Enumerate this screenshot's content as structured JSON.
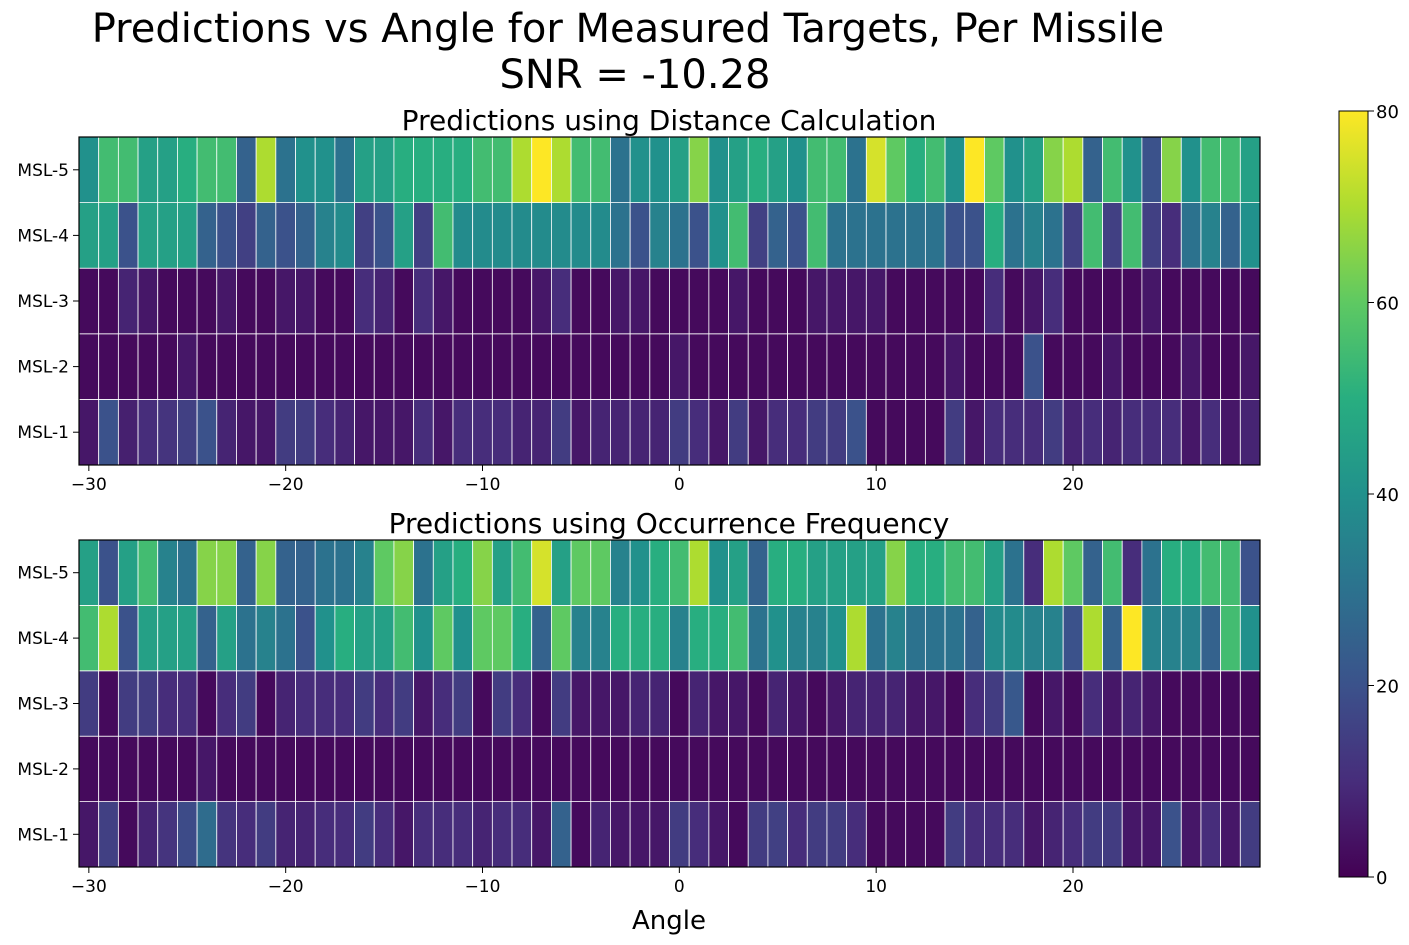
{
  "figure": {
    "title_line1": "Predictions vs Angle for Measured Targets, Per Missile",
    "title_line2": "SNR = -10.28",
    "xlabel": "Angle"
  },
  "colorbar": {
    "colormap": "viridis",
    "vmin": 0,
    "vmax": 80,
    "ticks": [
      0,
      20,
      40,
      60,
      80
    ]
  },
  "chart_data": [
    {
      "type": "heatmap",
      "title": "Predictions using Distance Calculation",
      "x": [
        -30,
        -29,
        -28,
        -27,
        -26,
        -25,
        -24,
        -23,
        -22,
        -21,
        -20,
        -19,
        -18,
        -17,
        -16,
        -15,
        -14,
        -13,
        -12,
        -11,
        -10,
        -9,
        -8,
        -7,
        -6,
        -5,
        -4,
        -3,
        -2,
        -1,
        0,
        1,
        2,
        3,
        4,
        5,
        6,
        7,
        8,
        9,
        10,
        11,
        12,
        13,
        14,
        15,
        16,
        17,
        18,
        19,
        20,
        21,
        22,
        23,
        24,
        25,
        26,
        27,
        28,
        29
      ],
      "x_ticks": [
        -30,
        -20,
        -10,
        0,
        10,
        20
      ],
      "y_categories": [
        "MSL-1",
        "MSL-2",
        "MSL-3",
        "MSL-4",
        "MSL-5"
      ],
      "values": [
        [
          5,
          20,
          7,
          10,
          12,
          15,
          20,
          8,
          5,
          5,
          14,
          14,
          10,
          8,
          5,
          5,
          5,
          10,
          5,
          10,
          10,
          10,
          8,
          8,
          14,
          5,
          8,
          8,
          8,
          8,
          14,
          10,
          5,
          14,
          5,
          10,
          10,
          14,
          14,
          20,
          2,
          2,
          2,
          2,
          14,
          5,
          10,
          10,
          10,
          14,
          8,
          10,
          8,
          10,
          10,
          10,
          5,
          10,
          5,
          8
        ],
        [
          2,
          2,
          2,
          2,
          2,
          5,
          2,
          2,
          2,
          2,
          2,
          2,
          2,
          2,
          2,
          2,
          2,
          2,
          2,
          2,
          2,
          2,
          2,
          2,
          2,
          2,
          2,
          2,
          2,
          2,
          5,
          2,
          2,
          2,
          2,
          2,
          2,
          2,
          2,
          2,
          2,
          2,
          2,
          2,
          5,
          2,
          2,
          2,
          20,
          2,
          2,
          2,
          5,
          2,
          2,
          2,
          5,
          2,
          2,
          5
        ],
        [
          2,
          2,
          8,
          5,
          2,
          2,
          2,
          5,
          2,
          2,
          5,
          5,
          2,
          2,
          10,
          8,
          2,
          10,
          5,
          2,
          2,
          2,
          2,
          5,
          10,
          2,
          2,
          5,
          5,
          2,
          2,
          2,
          2,
          5,
          2,
          2,
          2,
          5,
          5,
          5,
          5,
          2,
          2,
          2,
          2,
          2,
          10,
          2,
          5,
          10,
          2,
          2,
          2,
          2,
          5,
          2,
          2,
          2,
          2,
          2
        ],
        [
          45,
          45,
          20,
          45,
          45,
          45,
          25,
          20,
          15,
          25,
          20,
          25,
          35,
          38,
          15,
          20,
          45,
          15,
          55,
          38,
          38,
          38,
          38,
          38,
          38,
          38,
          38,
          30,
          20,
          35,
          30,
          20,
          40,
          55,
          15,
          25,
          20,
          55,
          30,
          30,
          30,
          30,
          30,
          30,
          20,
          20,
          50,
          30,
          35,
          30,
          15,
          55,
          15,
          55,
          15,
          10,
          30,
          35,
          25,
          40
        ],
        [
          40,
          55,
          55,
          45,
          45,
          50,
          55,
          55,
          25,
          70,
          30,
          40,
          40,
          30,
          45,
          45,
          50,
          50,
          50,
          50,
          55,
          55,
          70,
          80,
          70,
          55,
          55,
          30,
          40,
          40,
          45,
          65,
          40,
          45,
          50,
          45,
          40,
          55,
          55,
          30,
          75,
          60,
          50,
          55,
          40,
          80,
          60,
          40,
          45,
          65,
          70,
          25,
          55,
          40,
          20,
          65,
          40,
          55,
          55,
          45
        ]
      ]
    },
    {
      "type": "heatmap",
      "title": "Predictions using Occurrence Frequency",
      "x": [
        -30,
        -29,
        -28,
        -27,
        -26,
        -25,
        -24,
        -23,
        -22,
        -21,
        -20,
        -19,
        -18,
        -17,
        -16,
        -15,
        -14,
        -13,
        -12,
        -11,
        -10,
        -9,
        -8,
        -7,
        -6,
        -5,
        -4,
        -3,
        -2,
        -1,
        0,
        1,
        2,
        3,
        4,
        5,
        6,
        7,
        8,
        9,
        10,
        11,
        12,
        13,
        14,
        15,
        16,
        17,
        18,
        19,
        20,
        21,
        22,
        23,
        24,
        25,
        26,
        27,
        28,
        29
      ],
      "x_ticks": [
        -30,
        -20,
        -10,
        0,
        10,
        20
      ],
      "y_categories": [
        "MSL-1",
        "MSL-2",
        "MSL-3",
        "MSL-4",
        "MSL-5"
      ],
      "values": [
        [
          5,
          15,
          2,
          8,
          12,
          18,
          28,
          12,
          10,
          14,
          8,
          8,
          10,
          10,
          14,
          10,
          5,
          10,
          10,
          10,
          8,
          10,
          10,
          5,
          25,
          2,
          8,
          5,
          5,
          5,
          14,
          10,
          5,
          2,
          14,
          15,
          10,
          14,
          14,
          10,
          2,
          2,
          2,
          2,
          14,
          10,
          10,
          10,
          5,
          8,
          10,
          14,
          14,
          5,
          5,
          20,
          5,
          10,
          5,
          14
        ],
        [
          2,
          2,
          2,
          2,
          2,
          2,
          5,
          2,
          2,
          2,
          2,
          2,
          2,
          2,
          2,
          2,
          2,
          2,
          2,
          2,
          2,
          2,
          2,
          2,
          2,
          2,
          2,
          2,
          2,
          2,
          2,
          2,
          2,
          2,
          2,
          2,
          2,
          2,
          2,
          2,
          2,
          2,
          2,
          2,
          2,
          2,
          2,
          2,
          2,
          2,
          2,
          2,
          2,
          2,
          2,
          2,
          2,
          2,
          2,
          2
        ],
        [
          14,
          2,
          14,
          14,
          10,
          10,
          2,
          10,
          14,
          2,
          8,
          10,
          10,
          10,
          14,
          10,
          14,
          5,
          10,
          14,
          2,
          14,
          10,
          2,
          14,
          5,
          5,
          5,
          8,
          8,
          2,
          8,
          5,
          5,
          2,
          8,
          5,
          2,
          5,
          8,
          8,
          8,
          5,
          5,
          2,
          10,
          14,
          22,
          2,
          5,
          2,
          10,
          5,
          8,
          5,
          2,
          2,
          2,
          2,
          2
        ],
        [
          55,
          70,
          20,
          45,
          45,
          45,
          25,
          45,
          30,
          35,
          30,
          20,
          40,
          50,
          45,
          45,
          55,
          40,
          60,
          40,
          60,
          60,
          50,
          25,
          60,
          35,
          35,
          50,
          50,
          50,
          35,
          50,
          50,
          55,
          30,
          40,
          35,
          35,
          40,
          70,
          30,
          35,
          30,
          30,
          30,
          25,
          38,
          38,
          35,
          35,
          20,
          70,
          25,
          80,
          35,
          35,
          35,
          25,
          55,
          40
        ],
        [
          45,
          20,
          45,
          55,
          35,
          30,
          65,
          65,
          25,
          65,
          25,
          25,
          30,
          30,
          35,
          60,
          65,
          30,
          45,
          50,
          65,
          45,
          55,
          75,
          45,
          60,
          60,
          35,
          40,
          50,
          55,
          70,
          40,
          45,
          25,
          50,
          50,
          45,
          45,
          45,
          45,
          65,
          50,
          50,
          55,
          55,
          45,
          30,
          10,
          70,
          60,
          25,
          55,
          10,
          30,
          50,
          50,
          55,
          55,
          20
        ]
      ]
    }
  ]
}
